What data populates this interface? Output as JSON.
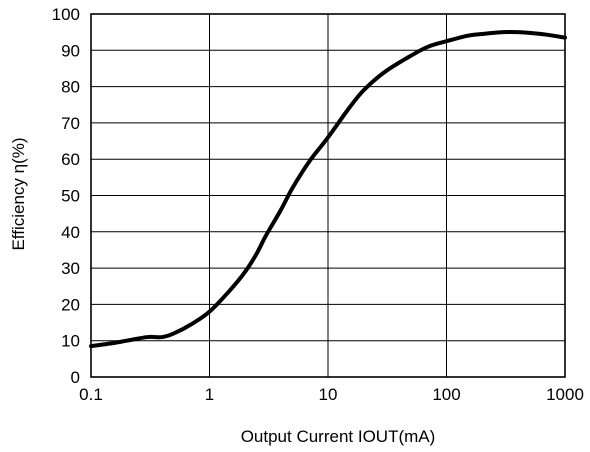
{
  "chart_data": {
    "type": "line",
    "title": "",
    "xlabel": "Output Current IOUT(mA)",
    "ylabel": "Efficiency η(%)",
    "x_scale": "log",
    "xlim": [
      0.1,
      1000
    ],
    "ylim": [
      0,
      100
    ],
    "x_ticks": [
      "0.1",
      "1",
      "10",
      "100",
      "1000"
    ],
    "y_ticks": [
      "0",
      "10",
      "20",
      "30",
      "40",
      "50",
      "60",
      "70",
      "80",
      "90",
      "100"
    ],
    "grid": true,
    "legend": "none",
    "series": [
      {
        "color": "#000000",
        "x": [
          0.1,
          0.15,
          0.2,
          0.3,
          0.4,
          0.5,
          0.7,
          1,
          1.5,
          2,
          2.5,
          3,
          4,
          5,
          7,
          10,
          15,
          20,
          30,
          50,
          70,
          100,
          150,
          200,
          300,
          400,
          500,
          700,
          1000
        ],
        "y": [
          8.5,
          9.3,
          10,
          11,
          11,
          12,
          14.5,
          18,
          24,
          29,
          34,
          39,
          46,
          52,
          59.5,
          66,
          74,
          79,
          84,
          88.5,
          91,
          92.5,
          94,
          94.5,
          95,
          95,
          94.8,
          94.3,
          93.5
        ]
      }
    ]
  }
}
